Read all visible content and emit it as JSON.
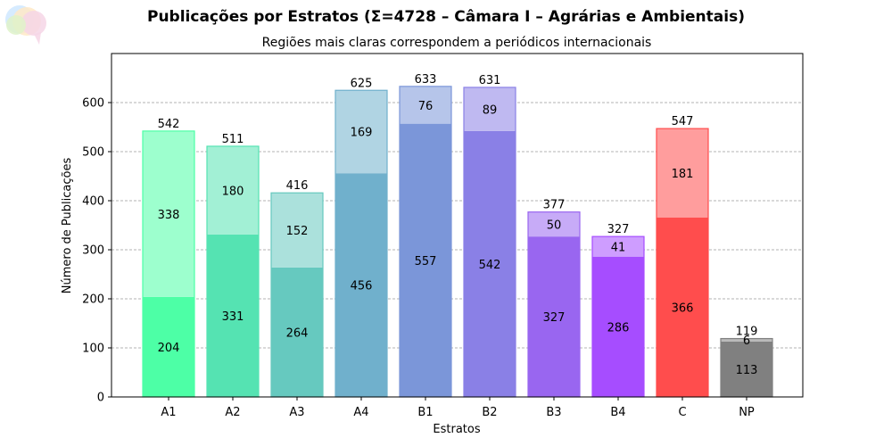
{
  "chart_data": {
    "type": "bar",
    "stacked": true,
    "title": "Publicações por Estratos (Σ=4728 – Câmara I – Agrárias e Ambientais)",
    "subtitle": "Regiões mais claras correspondem a periódicos internacionais",
    "xlabel": "Estratos",
    "ylabel": "Número de Publicações",
    "categories": [
      "A1",
      "A2",
      "A3",
      "A4",
      "B1",
      "B2",
      "B3",
      "B4",
      "C",
      "NP"
    ],
    "series": [
      {
        "values": [
          204,
          331,
          264,
          456,
          557,
          542,
          327,
          286,
          366,
          113
        ]
      },
      {
        "values": [
          338,
          180,
          152,
          169,
          76,
          89,
          50,
          41,
          181,
          6
        ]
      }
    ],
    "totals": [
      542,
      511,
      416,
      625,
      633,
      631,
      377,
      327,
      547,
      119
    ],
    "colors": [
      "#4dffa6",
      "#55e3b2",
      "#66c9bf",
      "#70b0cc",
      "#7b96d9",
      "#8a80e6",
      "#9966f0",
      "#a64dff",
      "#ff4d4d",
      "#808080"
    ],
    "ylim": [
      0,
      700
    ],
    "yticks": [
      0,
      100,
      200,
      300,
      400,
      500,
      600
    ],
    "grid": "y-dashed",
    "legend": "none"
  },
  "logo": {
    "icon": "speech-bubbles-logo-icon"
  }
}
